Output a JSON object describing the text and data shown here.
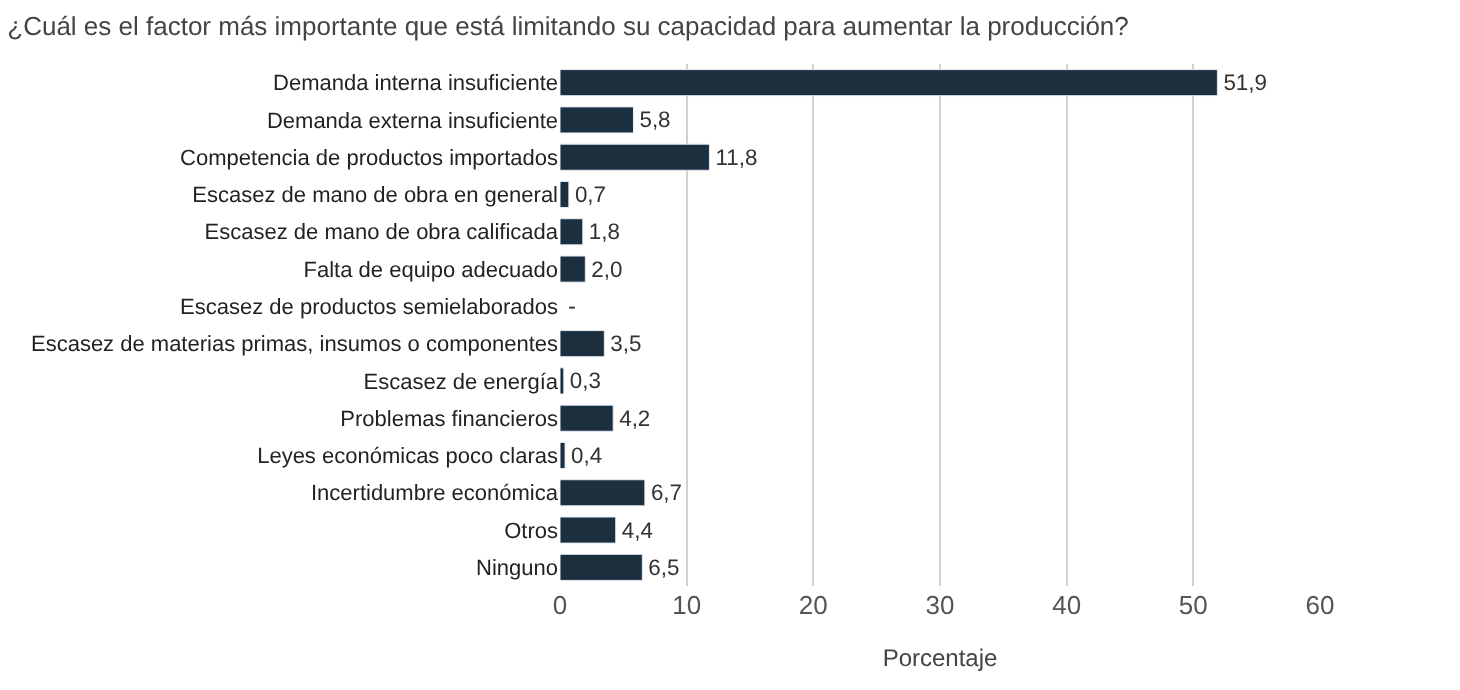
{
  "chart_data": {
    "type": "bar",
    "orientation": "horizontal",
    "title": "¿Cuál es el factor más importante que está limitando su capacidad para aumentar la producción?",
    "xlabel": "Porcentaje",
    "categories": [
      "Demanda interna insuficiente",
      "Demanda externa insuficiente",
      "Competencia de productos importados",
      "Escasez de mano de obra en general",
      "Escasez de mano de obra calificada",
      "Falta de equipo adecuado",
      "Escasez de productos semielaborados",
      "Escasez de materias primas, insumos o componentes",
      "Escasez de energía",
      "Problemas financieros",
      "Leyes económicas poco claras",
      "Incertidumbre económica",
      "Otros",
      "Ninguno"
    ],
    "values": [
      51.9,
      5.8,
      11.8,
      0.7,
      1.8,
      2.0,
      null,
      3.5,
      0.3,
      4.2,
      0.4,
      6.7,
      4.4,
      6.5
    ],
    "value_labels": [
      "51,9",
      "5,8",
      "11,8",
      "0,7",
      "1,8",
      "2,0",
      "-",
      "3,5",
      "0,3",
      "4,2",
      "0,4",
      "6,7",
      "4,4",
      "6,5"
    ],
    "color": "#1b2f3f",
    "xlim": [
      0,
      60
    ],
    "xticks": [
      0,
      10,
      20,
      30,
      40,
      50,
      60
    ],
    "grid": "x"
  }
}
